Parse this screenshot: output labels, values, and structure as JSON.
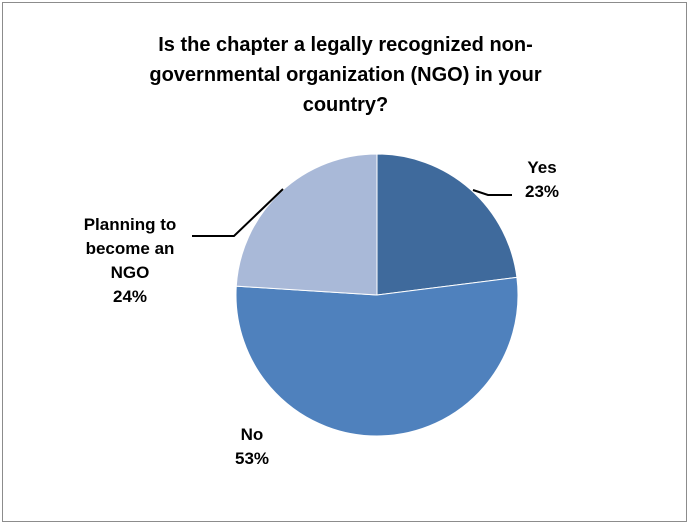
{
  "chart_data": {
    "type": "pie",
    "title_lines": [
      "Is the chapter a legally recognized non-",
      "governmental organization (NGO) in your",
      "country?"
    ],
    "slices": [
      {
        "label": "Yes",
        "value": 23,
        "display": "23%",
        "color": "#3f6a9c"
      },
      {
        "label": "No",
        "value": 53,
        "display": "53%",
        "color": "#4f81bd"
      },
      {
        "label": "Planning to become an NGO",
        "value": 24,
        "display": "24%",
        "color": "#a9b9d8"
      }
    ],
    "label_lines": {
      "yes": [
        "Yes",
        "23%"
      ],
      "no": [
        "No",
        "53%"
      ],
      "planning": [
        "Planning to",
        "become an",
        "NGO",
        "24%"
      ]
    }
  }
}
